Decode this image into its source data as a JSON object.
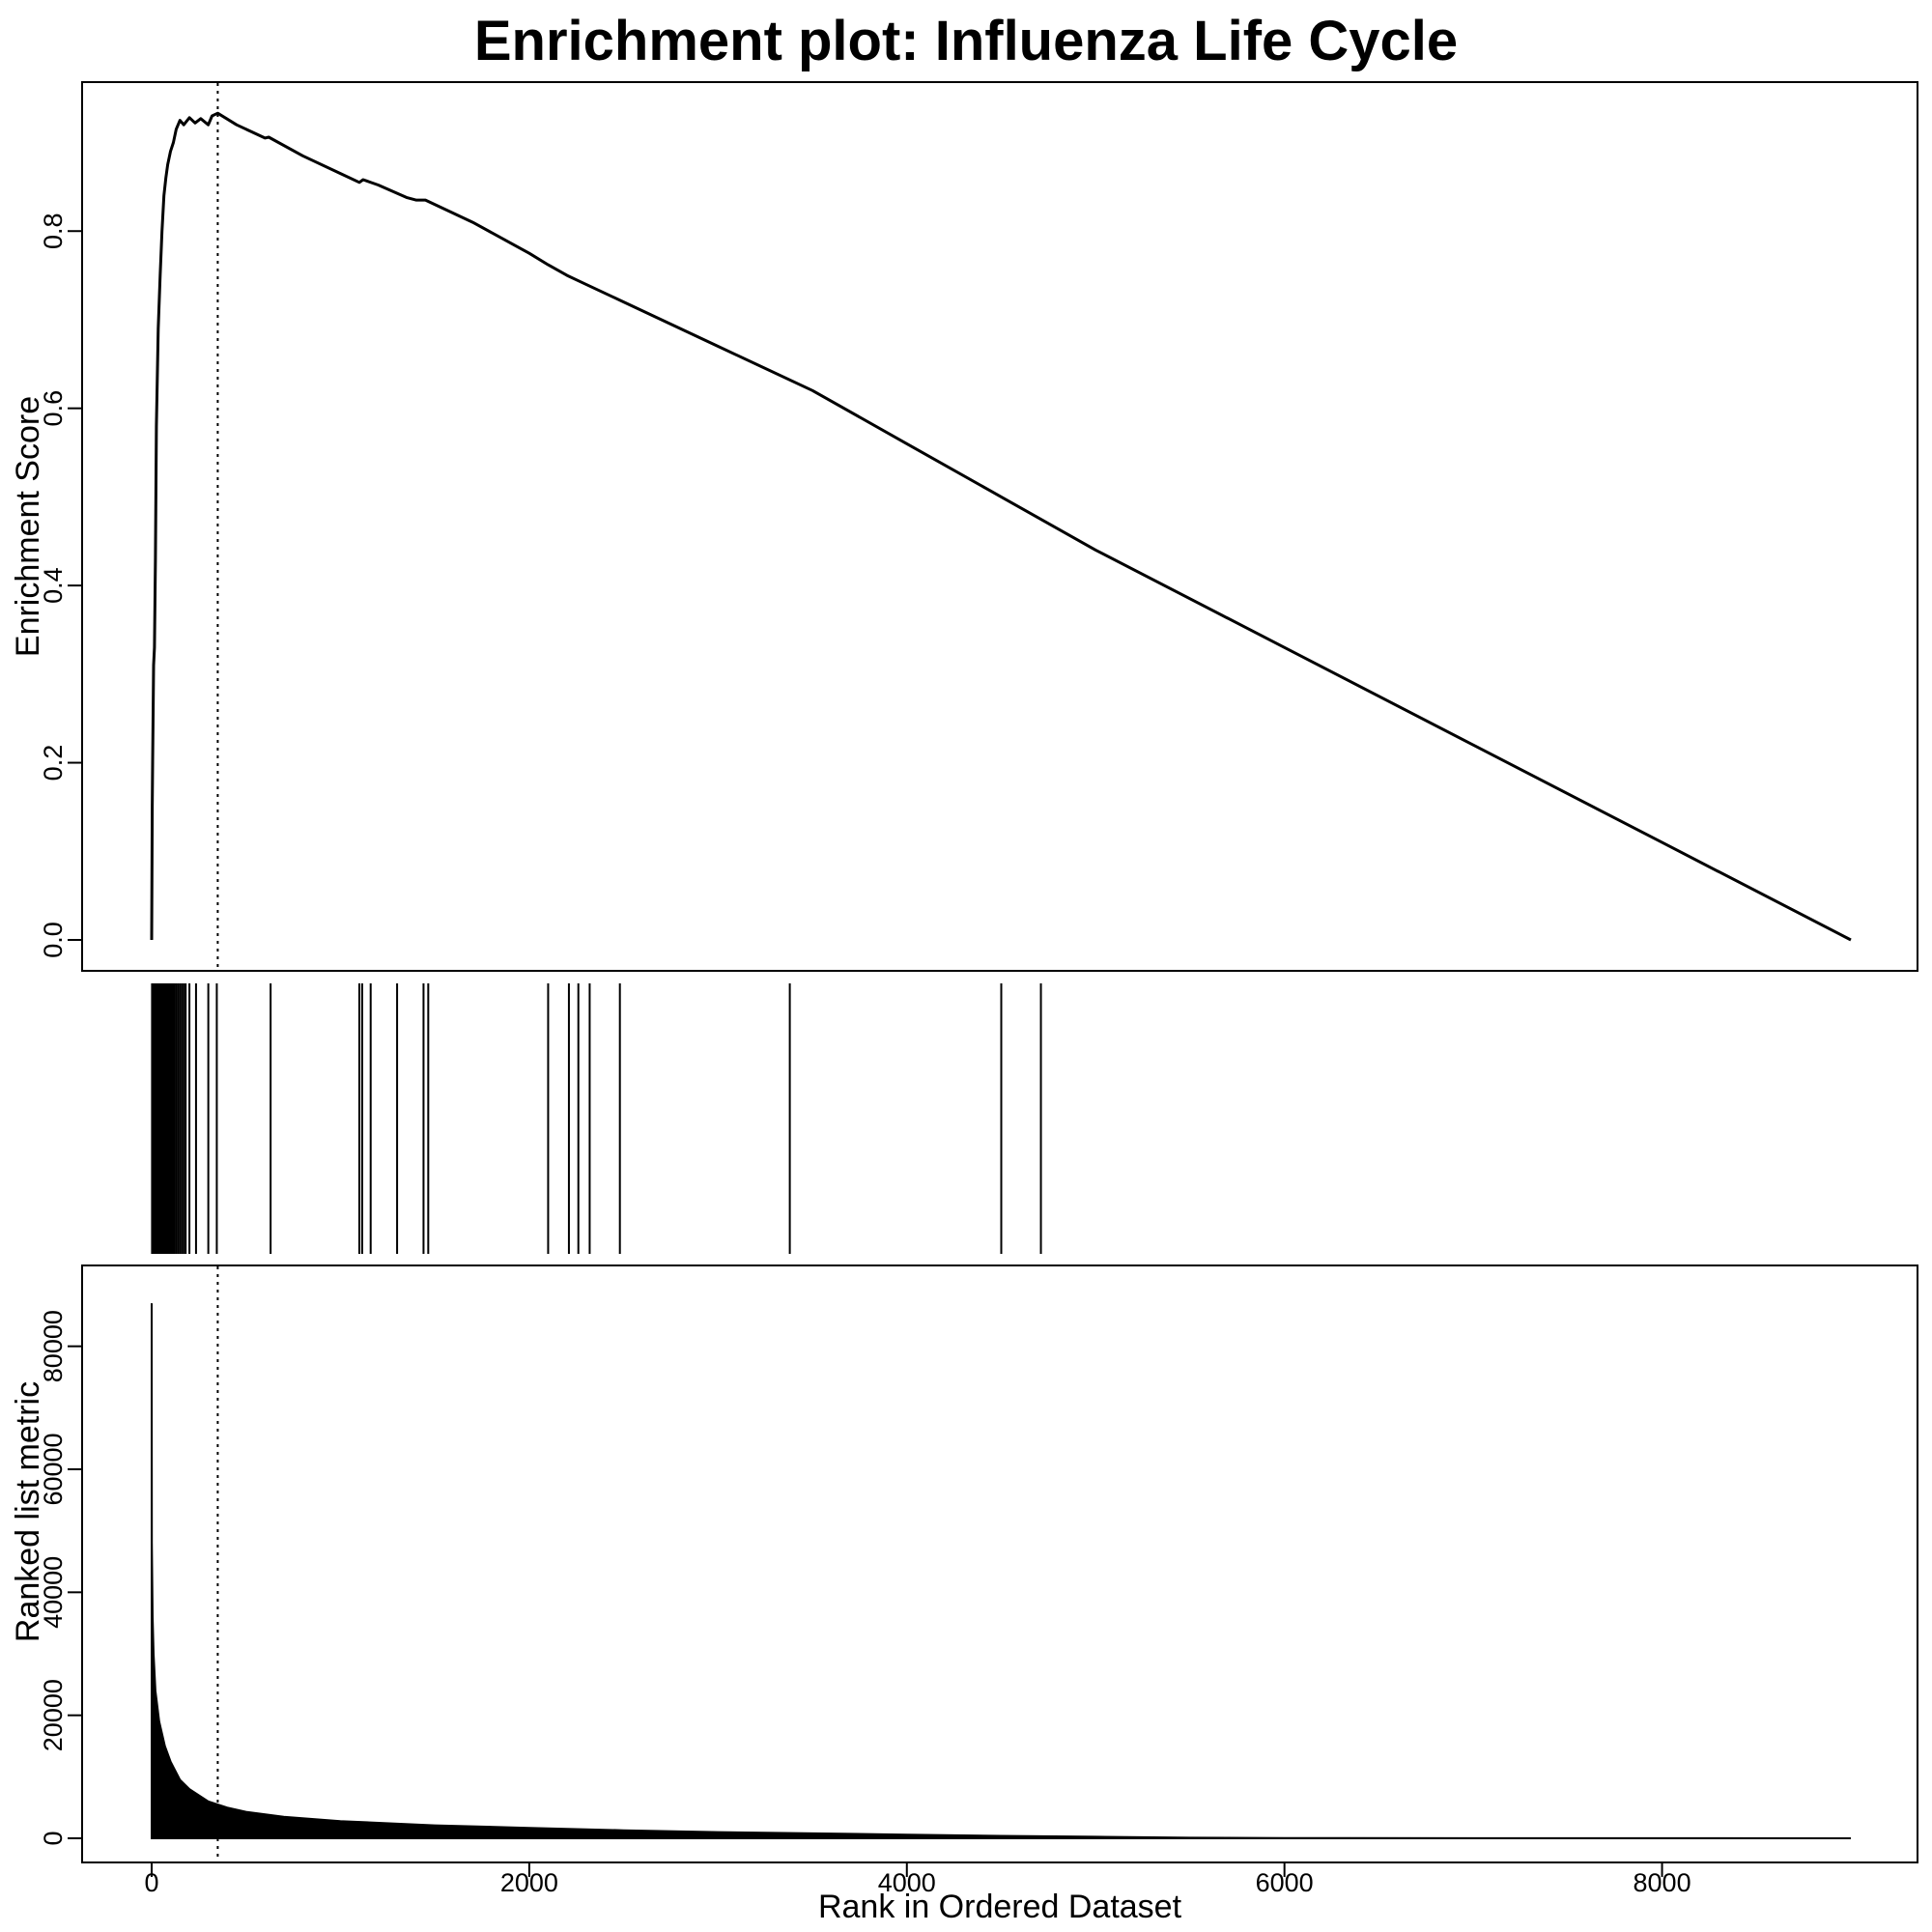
{
  "chart_data": {
    "type": "line",
    "title": "Enrichment plot: Influenza Life Cycle",
    "xlabel": "Rank in Ordered Dataset",
    "xlim": [
      0,
      9000
    ],
    "x_ticks": [
      "0",
      "2000",
      "4000",
      "6000",
      "8000"
    ],
    "x_tick_values": [
      0,
      2000,
      4000,
      6000,
      8000
    ],
    "max_es_rank": 350,
    "panels": {
      "enrichment": {
        "ylabel": "Enrichment Score",
        "ylim": [
          0,
          0.93
        ],
        "y_ticks": [
          "0.0",
          "0.2",
          "0.4",
          "0.6",
          "0.8"
        ],
        "y_tick_values": [
          0,
          0.2,
          0.4,
          0.6,
          0.8
        ],
        "series": [
          {
            "x": [
              0,
              3,
              5,
              10,
              15,
              20,
              25,
              35,
              45,
              55,
              65,
              75,
              85,
              100,
              115,
              130,
              150,
              170,
              200,
              230,
              260,
              300,
              320,
              350,
              450,
              600,
              620,
              800,
              1000,
              1100,
              1120,
              1200,
              1350,
              1400,
              1450,
              1700,
              2000,
              2100,
              2200,
              2300,
              2500,
              3000,
              3500,
              4000,
              4500,
              5000,
              6000,
              7000,
              8000,
              9000
            ],
            "y": [
              0,
              0.15,
              0.2,
              0.31,
              0.33,
              0.43,
              0.58,
              0.69,
              0.75,
              0.8,
              0.84,
              0.86,
              0.875,
              0.89,
              0.9,
              0.915,
              0.925,
              0.92,
              0.928,
              0.922,
              0.927,
              0.92,
              0.93,
              0.933,
              0.92,
              0.905,
              0.906,
              0.885,
              0.865,
              0.855,
              0.858,
              0.852,
              0.838,
              0.835,
              0.835,
              0.81,
              0.775,
              0.762,
              0.75,
              0.74,
              0.72,
              0.67,
              0.62,
              0.56,
              0.5,
              0.44,
              0.33,
              0.22,
              0.11,
              0
            ]
          }
        ]
      },
      "hits": {
        "ranks": [
          2,
          6,
          10,
          14,
          18,
          22,
          26,
          30,
          34,
          38,
          42,
          46,
          50,
          55,
          60,
          65,
          70,
          75,
          80,
          85,
          90,
          95,
          100,
          105,
          110,
          115,
          120,
          130,
          140,
          150,
          160,
          170,
          180,
          200,
          235,
          300,
          345,
          630,
          1100,
          1115,
          1160,
          1300,
          1440,
          1465,
          2100,
          2210,
          2260,
          2320,
          2480,
          3380,
          4500,
          4710
        ]
      },
      "ranked_metric": {
        "ylabel": "Ranked list metric",
        "ylim": [
          0,
          90000
        ],
        "y_ticks": [
          "0",
          "20000",
          "40000",
          "60000",
          "80000"
        ],
        "y_tick_values": [
          0,
          20000,
          40000,
          60000,
          80000
        ],
        "series": [
          {
            "x": [
              0,
              1,
              3,
              5,
              10,
              20,
              40,
              70,
              100,
              150,
              200,
              300,
              400,
              500,
              700,
              1000,
              1500,
              2000,
              2500,
              3000,
              3500,
              4000,
              4500,
              5000,
              5500,
              6000,
              7000,
              8000,
              9000
            ],
            "y": [
              87000,
              48000,
              42000,
              36000,
              30000,
              24000,
              19000,
              15000,
              12500,
              9500,
              8000,
              6000,
              5000,
              4300,
              3500,
              2800,
              2100,
              1700,
              1300,
              1000,
              800,
              600,
              400,
              250,
              100,
              50,
              20,
              10,
              0
            ]
          }
        ]
      }
    }
  }
}
